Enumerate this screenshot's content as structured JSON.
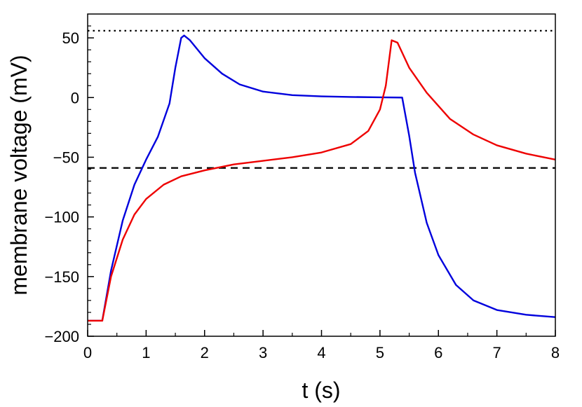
{
  "chart_data": {
    "type": "line",
    "xlabel": "t (s)",
    "ylabel": "membrane voltage (mV)",
    "xlim": [
      0,
      8
    ],
    "ylim": [
      -200,
      70
    ],
    "xticks": [
      0,
      1,
      2,
      3,
      4,
      5,
      6,
      7,
      8
    ],
    "xtick_labels": [
      "0",
      "1",
      "2",
      "3",
      "4",
      "5",
      "6",
      "7",
      "8"
    ],
    "yticks": [
      -200,
      -150,
      -100,
      -50,
      0,
      50
    ],
    "ytick_labels": [
      "−200",
      "−150",
      "−100",
      "−50",
      "0",
      "50"
    ],
    "grid": false,
    "reference_lines": [
      {
        "y": 56,
        "style": "dotted",
        "color": "#000000"
      },
      {
        "y": -59,
        "style": "dashed",
        "color": "#000000"
      }
    ],
    "series": [
      {
        "color": "#0000dd",
        "x": [
          0,
          0.25,
          0.4,
          0.6,
          0.8,
          1.0,
          1.2,
          1.4,
          1.5,
          1.6,
          1.65,
          1.75,
          2.0,
          2.3,
          2.6,
          3.0,
          3.5,
          4.0,
          4.5,
          5.0,
          5.38,
          5.5,
          5.6,
          5.8,
          6.0,
          6.3,
          6.6,
          7.0,
          7.5,
          8.0
        ],
        "y": [
          -187,
          -187,
          -145,
          -103,
          -73,
          -52,
          -33,
          -5,
          25,
          50,
          52,
          48,
          33,
          20,
          11,
          5,
          2,
          1,
          0.5,
          0.2,
          0,
          -32,
          -63,
          -105,
          -132,
          -157,
          -170,
          -178,
          -182,
          -184
        ]
      },
      {
        "color": "#ee0000",
        "x": [
          0,
          0.25,
          0.4,
          0.6,
          0.8,
          1.0,
          1.3,
          1.6,
          2.0,
          2.5,
          3.0,
          3.5,
          4.0,
          4.5,
          4.8,
          5.0,
          5.1,
          5.2,
          5.3,
          5.5,
          5.8,
          6.2,
          6.6,
          7.0,
          7.5,
          8.0
        ],
        "y": [
          -187,
          -187,
          -150,
          -119,
          -98,
          -85,
          -73,
          -66,
          -61,
          -56,
          -53,
          -50,
          -46,
          -39,
          -28,
          -10,
          10,
          48,
          46,
          25,
          4,
          -18,
          -31,
          -40,
          -47,
          -52
        ]
      }
    ]
  }
}
